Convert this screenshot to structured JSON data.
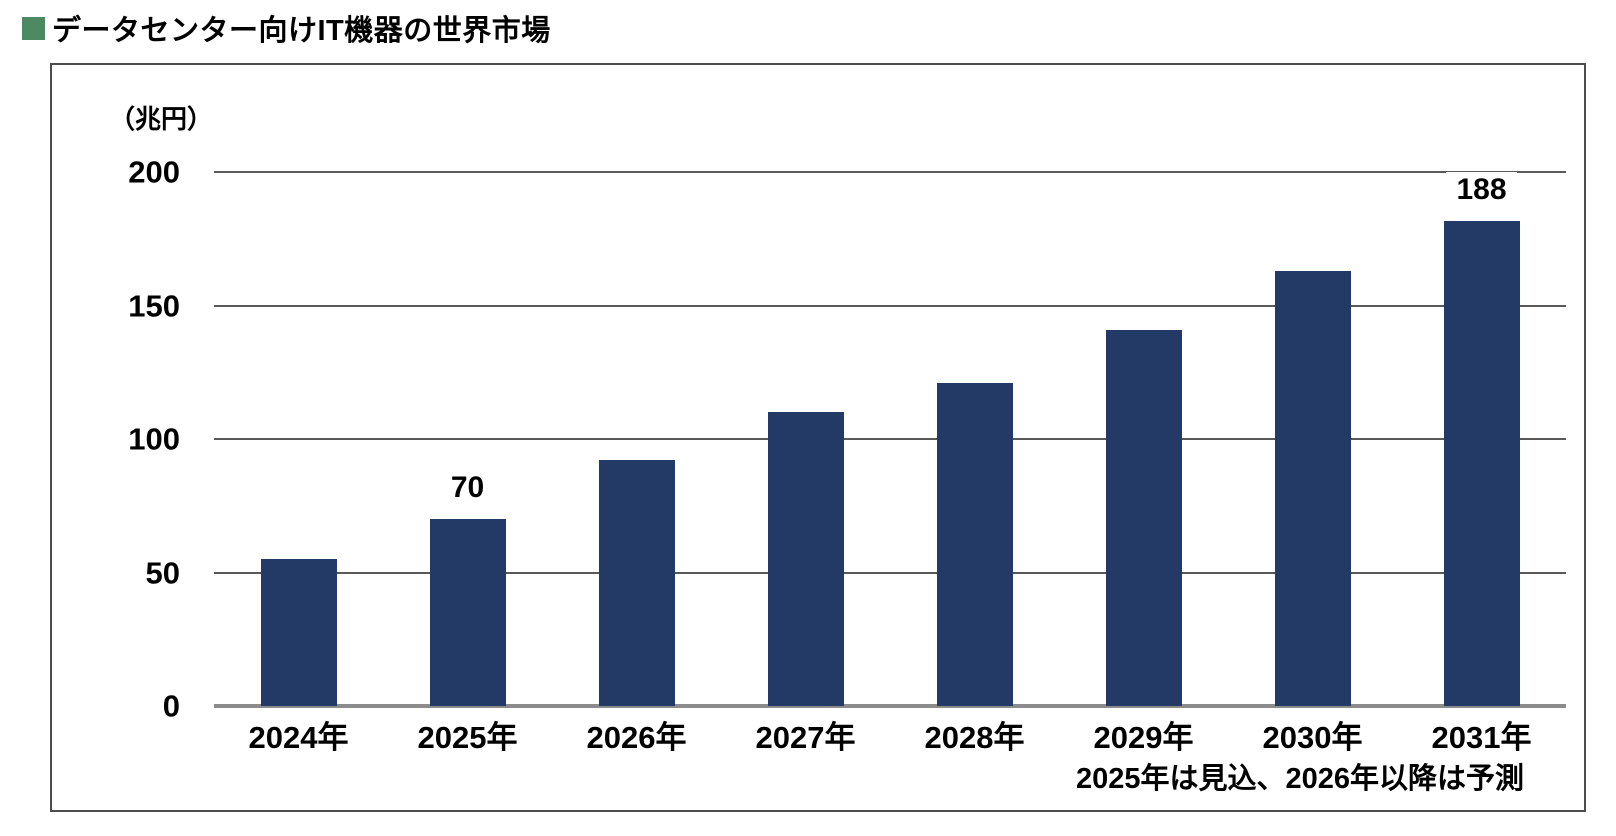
{
  "header": {
    "title": "データセンター向けIT機器の世界市場"
  },
  "chart_data": {
    "type": "bar",
    "title": "データセンター向けIT機器の世界市場",
    "unit_label": "（兆円）",
    "categories": [
      "2024年",
      "2025年",
      "2026年",
      "2027年",
      "2028年",
      "2029年",
      "2030年",
      "2031年"
    ],
    "values": [
      55,
      70,
      92,
      110,
      121,
      141,
      163,
      188
    ],
    "bar_labels": [
      "",
      "70",
      "",
      "",
      "",
      "",
      "",
      "188"
    ],
    "ylim": [
      0,
      200
    ],
    "yticks": [
      200,
      150,
      100,
      50,
      0
    ],
    "grid": true,
    "legend_position": "none",
    "footnote": "2025年は見込、2026年以降は予測",
    "styles": {
      "bar_color": "#243a66",
      "gridline_color": "#595959",
      "axis_color": "#8c8c8c",
      "border_color": "#4d4d4d",
      "bullet_color": "#4d8a63",
      "text_color": "#000000"
    }
  }
}
